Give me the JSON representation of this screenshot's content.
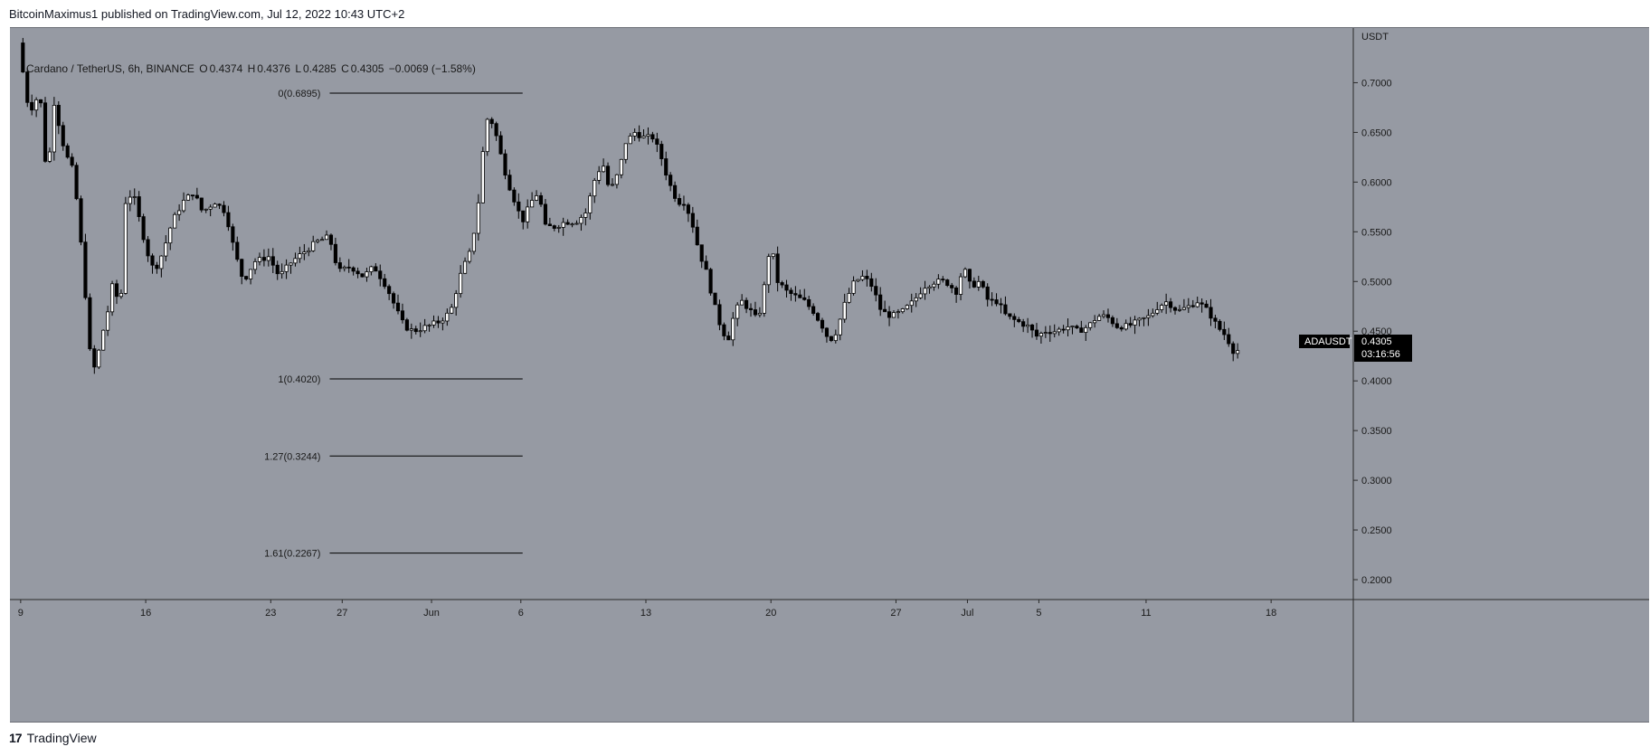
{
  "header": {
    "published_by": "BitcoinMaximus1 published on TradingView.com, Jul 12, 2022 10:43 UTC+2"
  },
  "legend": {
    "symbol": "Cardano / TetherUS, 6h, BINANCE",
    "open_label": "O",
    "open": "0.4374",
    "high_label": "H",
    "high": "0.4376",
    "low_label": "L",
    "low": "0.4285",
    "close_label": "C",
    "close": "0.4305",
    "change": "−0.0069 (−1.58%)"
  },
  "price_tag": {
    "symbol": "ADAUSDT",
    "price": "0.4305",
    "countdown": "03:16:56"
  },
  "footer": {
    "brand": "TradingView",
    "logo_glyph": "17"
  },
  "colors": {
    "background": "#969aa3",
    "bull": "#ffffff",
    "bear": "#000000",
    "text": "#131722"
  },
  "chart_data": {
    "type": "candlestick",
    "title": "",
    "y_axis": {
      "currency_label": "USDT",
      "ticks": [
        0.2,
        0.25,
        0.3,
        0.35,
        0.4,
        0.45,
        0.5,
        0.55,
        0.6,
        0.65,
        0.7
      ],
      "tick_labels": [
        "0.2000",
        "0.2500",
        "0.3000",
        "0.3500",
        "0.4000",
        "0.4500",
        "0.5000",
        "0.5500",
        "0.6000",
        "0.6500",
        "0.7000"
      ],
      "range": [
        0.18,
        0.755
      ]
    },
    "x_axis": {
      "tick_labels": [
        "9",
        "16",
        "23",
        "27",
        "Jun",
        "6",
        "13",
        "20",
        "27",
        "Jul",
        "5",
        "11",
        "18"
      ],
      "tick_days": [
        0,
        7,
        14,
        18,
        23,
        28,
        35,
        42,
        49,
        53,
        57,
        63,
        70
      ],
      "range_days": [
        -0.6,
        74.6
      ]
    },
    "fib_levels": [
      {
        "label": "0(0.6895)",
        "value": 0.6895
      },
      {
        "label": "1(0.4020)",
        "value": 0.402
      },
      {
        "label": "1.27(0.3244)",
        "value": 0.3244
      },
      {
        "label": "1.61(0.2267)",
        "value": 0.2267
      }
    ],
    "fib_x_days": [
      17.3,
      28.1
    ],
    "price_path": [
      [
        0,
        0.74
      ],
      [
        0.6,
        0.67
      ],
      [
        1.2,
        0.69
      ],
      [
        1.6,
        0.6
      ],
      [
        2.0,
        0.68
      ],
      [
        2.6,
        0.63
      ],
      [
        3.1,
        0.61
      ],
      [
        3.6,
        0.52
      ],
      [
        4.0,
        0.43
      ],
      [
        4.3,
        0.41
      ],
      [
        4.6,
        0.44
      ],
      [
        5.0,
        0.47
      ],
      [
        5.3,
        0.5
      ],
      [
        5.7,
        0.47
      ],
      [
        6.0,
        0.58
      ],
      [
        6.4,
        0.59
      ],
      [
        6.8,
        0.56
      ],
      [
        7.2,
        0.53
      ],
      [
        7.6,
        0.51
      ],
      [
        8.1,
        0.53
      ],
      [
        8.6,
        0.56
      ],
      [
        9.2,
        0.58
      ],
      [
        9.8,
        0.59
      ],
      [
        10.3,
        0.57
      ],
      [
        11.0,
        0.58
      ],
      [
        11.6,
        0.57
      ],
      [
        12.1,
        0.53
      ],
      [
        12.6,
        0.5
      ],
      [
        13.2,
        0.52
      ],
      [
        14.0,
        0.525
      ],
      [
        14.6,
        0.505
      ],
      [
        15.3,
        0.52
      ],
      [
        16.0,
        0.53
      ],
      [
        16.7,
        0.54
      ],
      [
        17.4,
        0.545
      ],
      [
        17.9,
        0.51
      ],
      [
        18.6,
        0.515
      ],
      [
        19.3,
        0.505
      ],
      [
        19.9,
        0.515
      ],
      [
        20.6,
        0.495
      ],
      [
        21.2,
        0.47
      ],
      [
        21.6,
        0.455
      ],
      [
        22.1,
        0.45
      ],
      [
        22.9,
        0.455
      ],
      [
        23.6,
        0.46
      ],
      [
        24.2,
        0.47
      ],
      [
        24.8,
        0.51
      ],
      [
        25.3,
        0.53
      ],
      [
        25.7,
        0.57
      ],
      [
        26.0,
        0.63
      ],
      [
        26.3,
        0.67
      ],
      [
        26.7,
        0.65
      ],
      [
        27.1,
        0.62
      ],
      [
        27.4,
        0.6
      ],
      [
        27.8,
        0.58
      ],
      [
        28.2,
        0.56
      ],
      [
        28.7,
        0.58
      ],
      [
        29.1,
        0.59
      ],
      [
        29.5,
        0.555
      ],
      [
        30.0,
        0.555
      ],
      [
        30.6,
        0.56
      ],
      [
        31.2,
        0.56
      ],
      [
        31.8,
        0.57
      ],
      [
        32.2,
        0.6
      ],
      [
        32.7,
        0.62
      ],
      [
        33.1,
        0.59
      ],
      [
        33.6,
        0.61
      ],
      [
        34.0,
        0.64
      ],
      [
        34.5,
        0.65
      ],
      [
        35.0,
        0.645
      ],
      [
        35.5,
        0.645
      ],
      [
        35.9,
        0.63
      ],
      [
        36.4,
        0.6
      ],
      [
        36.9,
        0.58
      ],
      [
        37.3,
        0.58
      ],
      [
        37.7,
        0.56
      ],
      [
        38.1,
        0.53
      ],
      [
        38.5,
        0.51
      ],
      [
        38.9,
        0.48
      ],
      [
        39.3,
        0.455
      ],
      [
        39.7,
        0.44
      ],
      [
        40.1,
        0.47
      ],
      [
        40.5,
        0.48
      ],
      [
        41.0,
        0.47
      ],
      [
        41.4,
        0.46
      ],
      [
        41.8,
        0.5
      ],
      [
        42.1,
        0.54
      ],
      [
        42.5,
        0.5
      ],
      [
        43.0,
        0.49
      ],
      [
        43.5,
        0.485
      ],
      [
        44.0,
        0.48
      ],
      [
        44.5,
        0.47
      ],
      [
        45.0,
        0.455
      ],
      [
        45.4,
        0.44
      ],
      [
        45.8,
        0.45
      ],
      [
        46.3,
        0.48
      ],
      [
        46.8,
        0.5
      ],
      [
        47.3,
        0.505
      ],
      [
        47.8,
        0.495
      ],
      [
        48.3,
        0.47
      ],
      [
        48.9,
        0.465
      ],
      [
        49.5,
        0.47
      ],
      [
        50.1,
        0.48
      ],
      [
        50.7,
        0.495
      ],
      [
        51.3,
        0.5
      ],
      [
        51.9,
        0.5
      ],
      [
        52.5,
        0.49
      ],
      [
        52.9,
        0.515
      ],
      [
        53.3,
        0.495
      ],
      [
        53.8,
        0.5
      ],
      [
        54.3,
        0.48
      ],
      [
        54.8,
        0.48
      ],
      [
        55.3,
        0.465
      ],
      [
        55.9,
        0.46
      ],
      [
        56.5,
        0.455
      ],
      [
        57.0,
        0.445
      ],
      [
        57.5,
        0.45
      ],
      [
        58.1,
        0.45
      ],
      [
        58.7,
        0.455
      ],
      [
        59.3,
        0.45
      ],
      [
        59.9,
        0.455
      ],
      [
        60.4,
        0.465
      ],
      [
        60.9,
        0.465
      ],
      [
        61.5,
        0.455
      ],
      [
        62.1,
        0.455
      ],
      [
        62.7,
        0.46
      ],
      [
        63.3,
        0.465
      ],
      [
        63.8,
        0.475
      ],
      [
        64.3,
        0.48
      ],
      [
        64.9,
        0.47
      ],
      [
        65.5,
        0.475
      ],
      [
        66.0,
        0.48
      ],
      [
        66.6,
        0.47
      ],
      [
        67.1,
        0.455
      ],
      [
        67.6,
        0.445
      ],
      [
        68.0,
        0.4305
      ]
    ],
    "last_price": 0.4305
  }
}
